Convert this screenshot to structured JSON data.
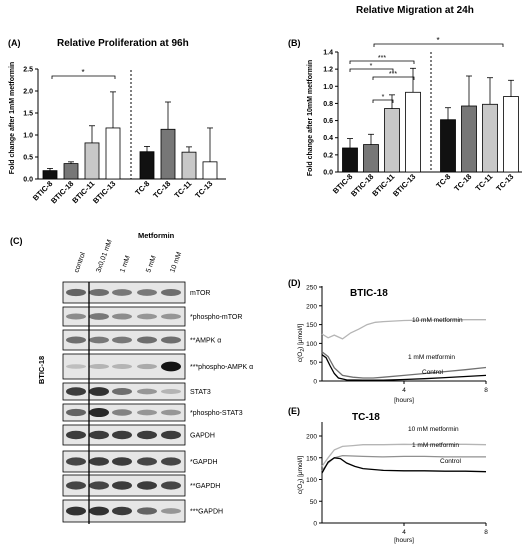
{
  "figure": {
    "panelA": {
      "letter": "(A)",
      "title": "Relative Proliferation at  96h",
      "ylabel": "Fold change after  1mM metformin",
      "ylim": [
        0,
        2.5
      ],
      "yticks": [
        "0.0",
        "0.5",
        "1.0",
        "1.5",
        "2.0",
        "2.5"
      ],
      "significance": [
        "*"
      ]
    },
    "panelB": {
      "letter": "(B)",
      "title": "Relative Migration at 24h",
      "ylabel": "Fold change after 10mM metformin",
      "ylim": [
        0,
        1.4
      ],
      "yticks": [
        "0.0",
        "0.2",
        "0.4",
        "0.6",
        "0.8",
        "1.0",
        "1.2",
        "1.4"
      ],
      "significance": [
        "*",
        "*",
        "***",
        "*",
        "***",
        "*"
      ]
    },
    "panelC": {
      "letter": "(C)",
      "header": "Metformin",
      "lanes": [
        "control",
        "3x0,01 mM",
        "1 mM",
        "5 mM",
        "10 mM"
      ],
      "side_label": "BTIC-18",
      "blots": [
        "mTOR",
        "*phospho-mTOR",
        "**AMPK α",
        "***phospho-AMPK α",
        "STAT3",
        "*phospho-STAT3",
        "GAPDH",
        "*GAPDH",
        "**GAPDH",
        "***GAPDH"
      ]
    },
    "panelD": {
      "letter": "(D)",
      "title": "BTIC-18",
      "ylabel_main": "c(O",
      "ylabel_sub": "2",
      "ylabel_end": ") [μmol/l]",
      "xlabel": "[hours]",
      "yticks": [
        "0",
        "50",
        "100",
        "150",
        "200",
        "250"
      ],
      "xticks": [
        "4",
        "8"
      ],
      "labels": [
        "10 mM metformin",
        "1 mM metformin",
        "Control"
      ]
    },
    "panelE": {
      "letter": "(E)",
      "title": "TC-18",
      "ylabel_main": "c(O",
      "ylabel_sub": "2",
      "ylabel_end": ") [μmol/l]",
      "xlabel": "[hours]",
      "yticks": [
        "0",
        "50",
        "100",
        "150",
        "200"
      ],
      "xticks": [
        "4",
        "8"
      ],
      "labels": [
        "10 mM metformin",
        "1 mM metformin",
        "Control"
      ]
    }
  },
  "chart_data": [
    {
      "type": "bar",
      "title": "Relative Proliferation at  96h",
      "ylabel": "Fold change after  1mM metformin",
      "categories": [
        "BTIC-8",
        "BTIC-18",
        "BTIC-11",
        "BTIC-13",
        "TC-8",
        "TC-18",
        "TC-11",
        "TC-13"
      ],
      "values": [
        0.19,
        0.35,
        0.82,
        1.16,
        0.62,
        1.13,
        0.61,
        0.39
      ],
      "errors": [
        0.05,
        0.04,
        0.39,
        0.82,
        0.12,
        0.62,
        0.12,
        0.77
      ],
      "fills": [
        "#111111",
        "#777777",
        "#c8c8c8",
        "#ffffff",
        "#111111",
        "#777777",
        "#c8c8c8",
        "#ffffff"
      ],
      "ylim": [
        0,
        2.5
      ]
    },
    {
      "type": "bar",
      "title": "Relative Migration at 24h",
      "ylabel": "Fold change after 10mM metformin",
      "categories": [
        "BTIC-8",
        "BTIC-18",
        "BTIC-11",
        "BTIC-13",
        "TC-8",
        "TC-18",
        "TC-11",
        "TC-13"
      ],
      "values": [
        0.28,
        0.32,
        0.74,
        0.93,
        0.61,
        0.77,
        0.79,
        0.88
      ],
      "errors": [
        0.11,
        0.12,
        0.16,
        0.28,
        0.14,
        0.35,
        0.31,
        0.19
      ],
      "fills": [
        "#111111",
        "#777777",
        "#c8c8c8",
        "#ffffff",
        "#111111",
        "#777777",
        "#c8c8c8",
        "#ffffff"
      ],
      "ylim": [
        0,
        1.4
      ]
    },
    {
      "type": "line",
      "title": "BTIC-18",
      "xlabel": "[hours]",
      "xlim": [
        0,
        8
      ],
      "ylim": [
        0,
        250
      ],
      "series": [
        {
          "name": "10 mM metformin",
          "color": "#b5b5b5",
          "x": [
            0,
            0.3,
            0.6,
            1,
            1.4,
            1.8,
            2.2,
            2.6,
            3,
            4,
            5,
            6,
            7,
            8
          ],
          "y": [
            125,
            115,
            122,
            112,
            128,
            138,
            150,
            156,
            158,
            161,
            162,
            162,
            163,
            163
          ]
        },
        {
          "name": "1 mM metformin",
          "color": "#707070",
          "x": [
            0,
            0.3,
            0.6,
            1,
            1.5,
            2,
            2.5,
            3,
            4,
            5,
            6,
            7,
            8
          ],
          "y": [
            78,
            65,
            35,
            15,
            10,
            8,
            8,
            10,
            15,
            20,
            25,
            30,
            36
          ]
        },
        {
          "name": "Control",
          "color": "#000000",
          "x": [
            0,
            0.2,
            0.4,
            0.6,
            0.8,
            1.2,
            2,
            3,
            4,
            5,
            6,
            7,
            8
          ],
          "y": [
            70,
            62,
            40,
            20,
            8,
            3,
            2,
            2,
            4,
            6,
            9,
            12,
            15
          ]
        }
      ]
    },
    {
      "type": "line",
      "title": "TC-18",
      "xlabel": "[hours]",
      "xlim": [
        0,
        8
      ],
      "ylim": [
        0,
        200
      ],
      "series": [
        {
          "name": "10 mM metformin",
          "color": "#b5b5b5",
          "x": [
            0,
            0.3,
            0.6,
            1,
            1.5,
            2,
            3,
            4,
            5,
            6,
            7,
            8
          ],
          "y": [
            130,
            150,
            168,
            176,
            178,
            180,
            180,
            181,
            180,
            181,
            181,
            180
          ]
        },
        {
          "name": "1 mM metformin",
          "color": "#909090",
          "x": [
            0,
            0.3,
            0.6,
            1,
            1.5,
            2,
            3,
            4,
            5,
            6,
            7,
            8
          ],
          "y": [
            120,
            138,
            150,
            155,
            154,
            153,
            152,
            153,
            153,
            152,
            152,
            152
          ]
        },
        {
          "name": "Control",
          "color": "#000000",
          "x": [
            0,
            0.3,
            0.6,
            0.9,
            1.2,
            1.6,
            2,
            2.5,
            3,
            4,
            5,
            6,
            7,
            8
          ],
          "y": [
            115,
            140,
            150,
            148,
            138,
            130,
            125,
            123,
            121,
            120,
            120,
            119,
            119,
            118
          ]
        }
      ]
    }
  ]
}
